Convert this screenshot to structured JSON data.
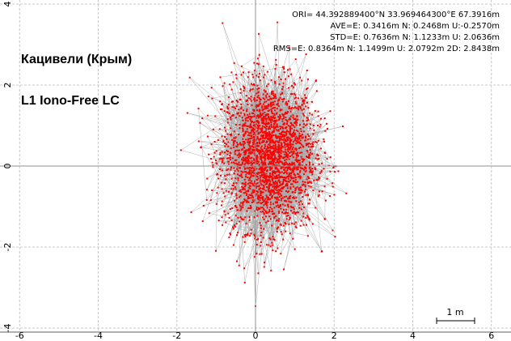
{
  "chart_data": {
    "type": "scatter",
    "title_lines": [
      "Кацивели (Крым)",
      "L1 Iono-Free LC"
    ],
    "stats": [
      "ORI= 44.392889400°N   33.969464300°E 67.3916m",
      "AVE=E: 0.3416m N: 0.2468m U:-0.2570m",
      "STD=E: 0.7636m N: 1.1233m U: 2.0636m",
      "RMS=E: 0.8364m N: 1.1499m U: 2.0792m 2D: 2.8438m"
    ],
    "xlim": [
      -6.5,
      6.5
    ],
    "ylim": [
      -4.1,
      4.1
    ],
    "x_ticks": [
      "-6",
      "-4",
      "-2",
      "0",
      "2",
      "4",
      "6"
    ],
    "x_tick_values": [
      -6,
      -4,
      -2,
      0,
      2,
      4,
      6
    ],
    "y_ticks": [
      "4",
      "2",
      "0",
      "-2",
      "-4"
    ],
    "y_tick_values": [
      4,
      2,
      0,
      -2,
      -4
    ],
    "grid": true,
    "scale_bar_label": "1 m",
    "scale_bar_length_m": 1,
    "series": [
      {
        "point_color": "#ff0000",
        "line_color": "#a8a8a8",
        "count": 2600,
        "mean_e": 0.3416,
        "mean_n": 0.2468,
        "std_e": 0.7636,
        "std_n": 1.1233
      }
    ]
  }
}
